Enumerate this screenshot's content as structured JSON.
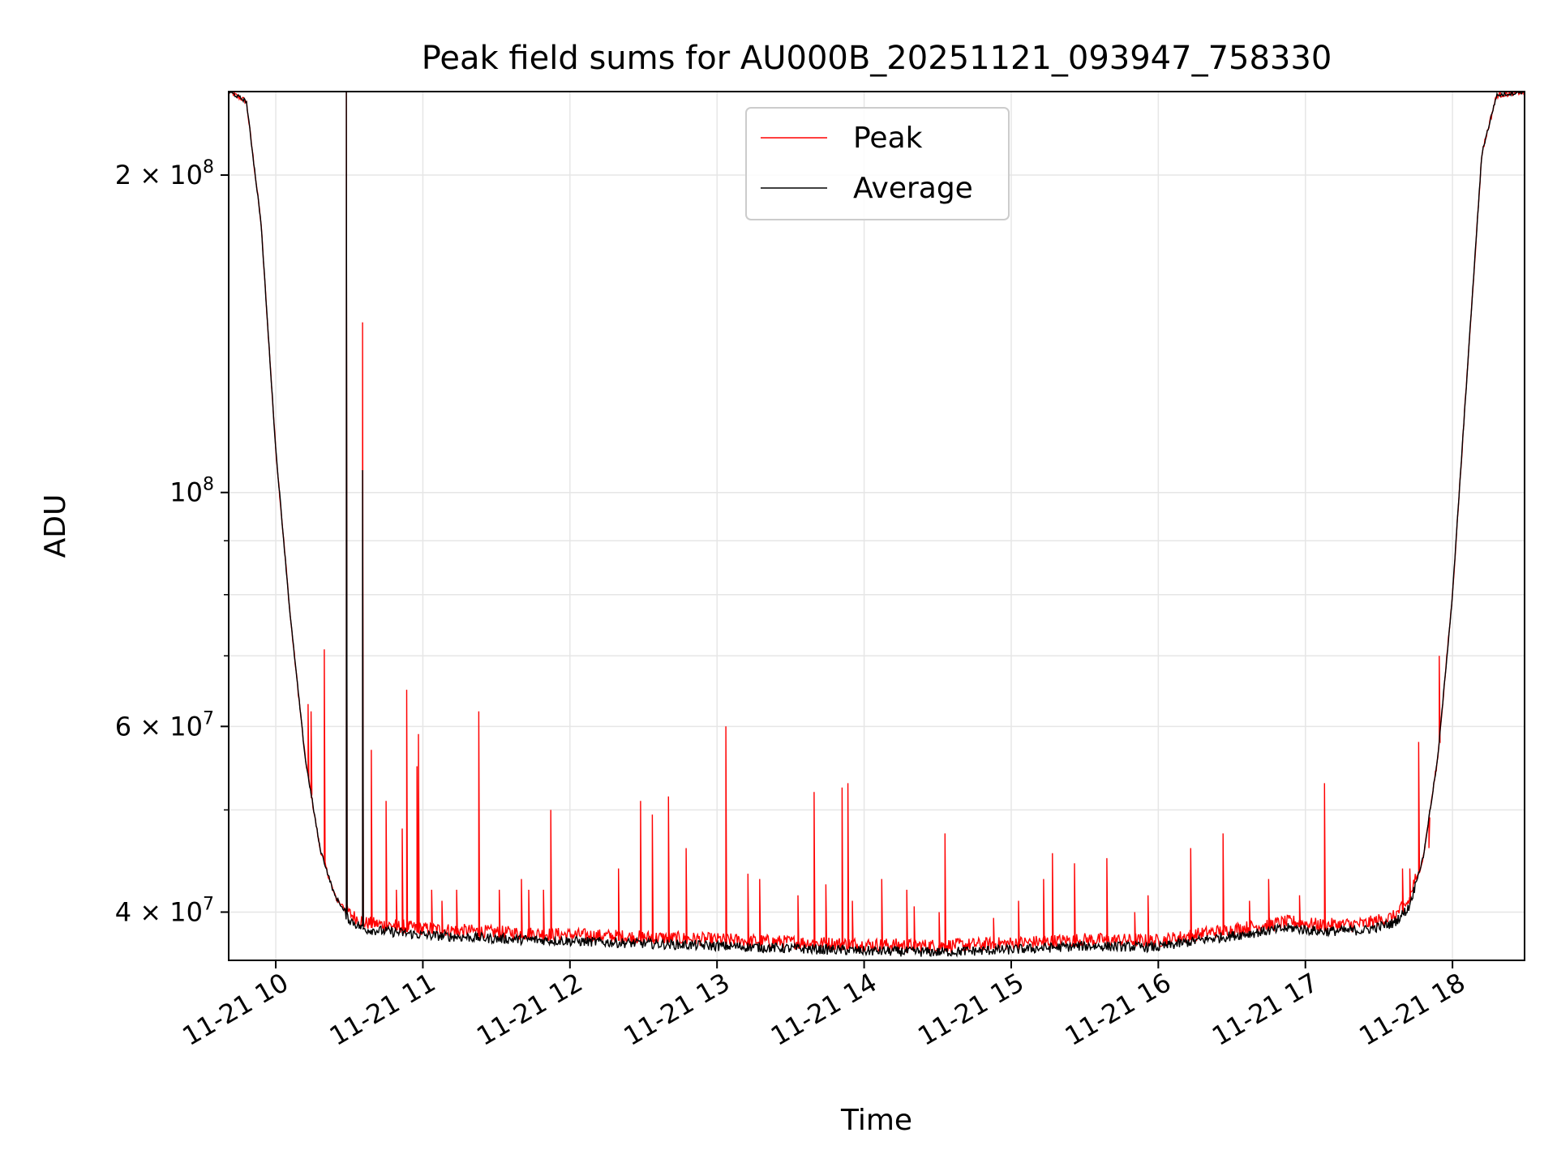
{
  "chart_data": {
    "type": "line",
    "title": "Peak field sums for AU000B_20251121_093947_758330",
    "xlabel": "Time",
    "ylabel": "ADU",
    "yscale": "log",
    "xlim": [
      9.68,
      18.49
    ],
    "ylim": [
      36000000.0,
      240000000.0
    ],
    "grid": true,
    "legend_position": "upper center",
    "x_tick_values": [
      10,
      11,
      12,
      13,
      14,
      15,
      16,
      17,
      18
    ],
    "x_tick_labels": [
      "11-21 10",
      "11-21 11",
      "11-21 12",
      "11-21 13",
      "11-21 14",
      "11-21 15",
      "11-21 16",
      "11-21 17",
      "11-21 18"
    ],
    "y_major_ticks": [
      {
        "value": 40000000,
        "mantissa": "4 ×",
        "base": "10",
        "exp": "7"
      },
      {
        "value": 60000000,
        "mantissa": "6 ×",
        "base": "10",
        "exp": "7"
      },
      {
        "value": 100000000,
        "mantissa": "",
        "base": "10",
        "exp": "8"
      },
      {
        "value": 200000000,
        "mantissa": "2 ×",
        "base": "10",
        "exp": "8"
      }
    ],
    "y_minor_ticks": [
      50000000,
      70000000,
      80000000,
      90000000
    ],
    "baseline": {
      "x": [
        9.68,
        9.8,
        9.9,
        10.0,
        10.1,
        10.2,
        10.3,
        10.4,
        10.5,
        10.6,
        11.0,
        11.5,
        12.0,
        12.5,
        13.0,
        13.5,
        14.0,
        14.5,
        15.0,
        15.5,
        16.0,
        16.3,
        16.6,
        16.9,
        17.1,
        17.4,
        17.6,
        17.7,
        17.8,
        17.9,
        18.0,
        18.1,
        18.2,
        18.3,
        18.49
      ],
      "y": [
        240000000.0,
        235000000.0,
        180000000.0,
        110000000.0,
        76000000.0,
        56000000.0,
        46000000.0,
        41500000.0,
        39500000.0,
        38700000.0,
        38200000.0,
        37900000.0,
        37700000.0,
        37500000.0,
        37300000.0,
        37100000.0,
        36900000.0,
        36800000.0,
        37000000.0,
        37300000.0,
        37200000.0,
        37800000.0,
        38300000.0,
        38800000.0,
        38500000.0,
        38600000.0,
        39200000.0,
        40500000.0,
        45000000.0,
        56000000.0,
        80000000.0,
        130000000.0,
        210000000.0,
        238000000.0,
        240000000.0
      ]
    },
    "series": [
      {
        "name": "Peak",
        "color": "#ff0000",
        "spikes": [
          {
            "x": 10.48,
            "y": 240000000.0
          },
          {
            "x": 10.59,
            "y": 145000000.0
          },
          {
            "x": 10.33,
            "y": 71000000.0
          },
          {
            "x": 10.22,
            "y": 63000000.0
          },
          {
            "x": 10.24,
            "y": 62000000.0
          },
          {
            "x": 10.65,
            "y": 57000000.0
          },
          {
            "x": 10.75,
            "y": 51000000.0
          },
          {
            "x": 10.89,
            "y": 65000000.0
          },
          {
            "x": 10.96,
            "y": 55000000.0
          },
          {
            "x": 10.97,
            "y": 59000000.0
          },
          {
            "x": 10.86,
            "y": 48000000.0
          },
          {
            "x": 10.82,
            "y": 42000000.0
          },
          {
            "x": 11.38,
            "y": 62000000.0
          },
          {
            "x": 11.06,
            "y": 42000000.0
          },
          {
            "x": 11.13,
            "y": 41000000.0
          },
          {
            "x": 11.23,
            "y": 42000000.0
          },
          {
            "x": 11.52,
            "y": 42000000.0
          },
          {
            "x": 11.67,
            "y": 43000000.0
          },
          {
            "x": 11.72,
            "y": 42000000.0
          },
          {
            "x": 11.82,
            "y": 42000000.0
          },
          {
            "x": 11.87,
            "y": 50000000.0
          },
          {
            "x": 12.33,
            "y": 44000000.0
          },
          {
            "x": 12.48,
            "y": 51000000.0
          },
          {
            "x": 12.56,
            "y": 49500000.0
          },
          {
            "x": 12.67,
            "y": 51500000.0
          },
          {
            "x": 12.79,
            "y": 46000000.0
          },
          {
            "x": 13.06,
            "y": 60000000.0
          },
          {
            "x": 13.21,
            "y": 43500000.0
          },
          {
            "x": 13.29,
            "y": 43000000.0
          },
          {
            "x": 13.55,
            "y": 41500000.0
          },
          {
            "x": 13.66,
            "y": 52000000.0
          },
          {
            "x": 13.74,
            "y": 42500000.0
          },
          {
            "x": 13.85,
            "y": 52500000.0
          },
          {
            "x": 13.89,
            "y": 53000000.0
          },
          {
            "x": 13.92,
            "y": 41000000.0
          },
          {
            "x": 14.12,
            "y": 43000000.0
          },
          {
            "x": 14.29,
            "y": 42000000.0
          },
          {
            "x": 14.34,
            "y": 40500000.0
          },
          {
            "x": 14.51,
            "y": 40000000.0
          },
          {
            "x": 14.55,
            "y": 47500000.0
          },
          {
            "x": 14.88,
            "y": 39500000.0
          },
          {
            "x": 15.05,
            "y": 41000000.0
          },
          {
            "x": 15.22,
            "y": 43000000.0
          },
          {
            "x": 15.28,
            "y": 45500000.0
          },
          {
            "x": 15.43,
            "y": 44500000.0
          },
          {
            "x": 15.65,
            "y": 45000000.0
          },
          {
            "x": 15.84,
            "y": 40000000.0
          },
          {
            "x": 15.93,
            "y": 41500000.0
          },
          {
            "x": 16.22,
            "y": 46000000.0
          },
          {
            "x": 16.44,
            "y": 47500000.0
          },
          {
            "x": 16.62,
            "y": 41000000.0
          },
          {
            "x": 16.75,
            "y": 43000000.0
          },
          {
            "x": 16.96,
            "y": 41500000.0
          },
          {
            "x": 17.13,
            "y": 53000000.0
          },
          {
            "x": 17.66,
            "y": 44000000.0
          },
          {
            "x": 17.71,
            "y": 44000000.0
          },
          {
            "x": 17.77,
            "y": 58000000.0
          },
          {
            "x": 17.84,
            "y": 46000000.0
          },
          {
            "x": 17.91,
            "y": 70000000.0
          }
        ]
      },
      {
        "name": "Average",
        "color": "#000000",
        "spikes": [
          {
            "x": 10.48,
            "y": 240000000.0
          },
          {
            "x": 10.59,
            "y": 105000000.0
          }
        ]
      }
    ]
  }
}
